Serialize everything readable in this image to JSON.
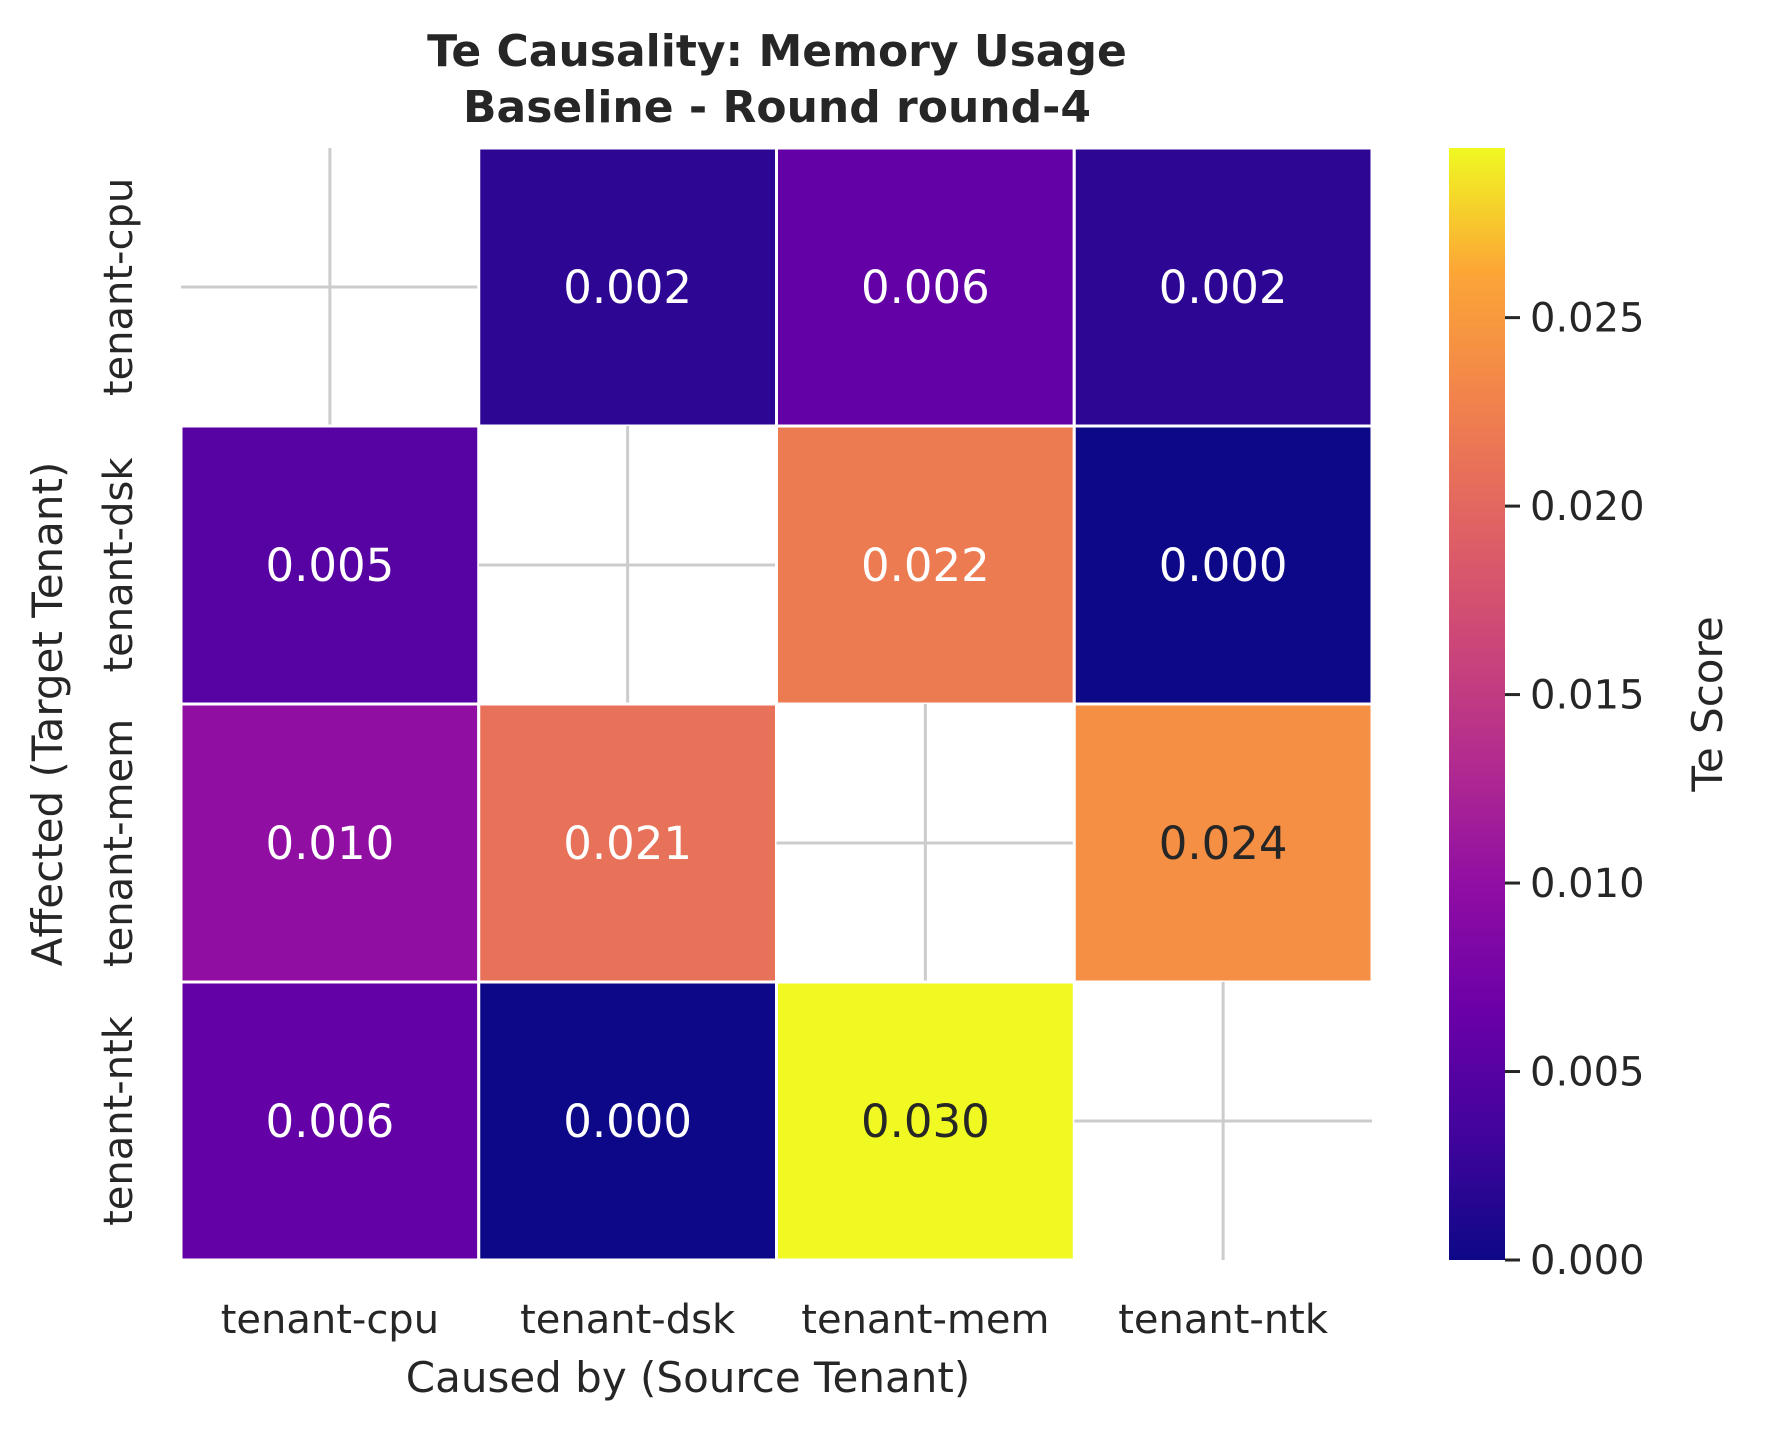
{
  "chart_data": {
    "type": "heatmap",
    "title": "Te Causality: Memory Usage",
    "subtitle": "Baseline - Round round-4",
    "xlabel": "Caused by (Source Tenant)",
    "ylabel": "Affected (Target Tenant)",
    "x_categories": [
      "tenant-cpu",
      "tenant-dsk",
      "tenant-mem",
      "tenant-ntk"
    ],
    "y_categories": [
      "tenant-cpu",
      "tenant-dsk",
      "tenant-mem",
      "tenant-ntk"
    ],
    "values": [
      [
        null,
        0.002,
        0.006,
        0.002
      ],
      [
        0.005,
        null,
        0.022,
        0.0
      ],
      [
        0.01,
        0.021,
        null,
        0.024
      ],
      [
        0.006,
        0.0,
        0.03,
        null
      ]
    ],
    "value_labels": [
      [
        null,
        "0.002",
        "0.006",
        "0.002"
      ],
      [
        0.005,
        null,
        "0.022",
        "0.000"
      ],
      [
        "0.010",
        "0.021",
        null,
        "0.024"
      ],
      [
        "0.006",
        "0.000",
        "0.030",
        null
      ]
    ],
    "colorbar": {
      "label": "Te Score",
      "colormap": "plasma",
      "range": [
        0,
        0.0295
      ],
      "ticks": [
        0.0,
        0.005,
        0.01,
        0.015,
        0.02,
        0.025
      ],
      "tick_labels": [
        "0.000",
        "0.005",
        "0.010",
        "0.015",
        "0.020",
        "0.025"
      ]
    },
    "missing_cell_style": "diagonal cells empty (white with light grey cross)",
    "grid": false
  }
}
